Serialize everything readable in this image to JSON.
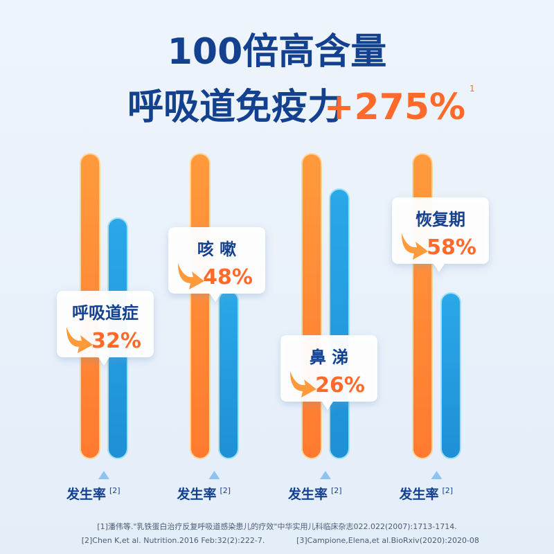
{
  "header": {
    "title_line1": "100倍高含量",
    "title_line2": "呼吸道免疫力",
    "highlight": "+275%",
    "footnote_mark": "1"
  },
  "groups": [
    {
      "label": "呼吸道症",
      "value": "32%",
      "axis_label": "发生率",
      "ref": "[2]"
    },
    {
      "label": "咳 嗽",
      "value": "48%",
      "axis_label": "发生率",
      "ref": "[2]"
    },
    {
      "label": "鼻 涕",
      "value": "26%",
      "axis_label": "发生率",
      "ref": "[2]"
    },
    {
      "label": "恢复期",
      "value": "58%",
      "axis_label": "发生率",
      "ref": "[2]"
    }
  ],
  "references": {
    "line1": "[1]潘伟等.\"乳铁蛋白治疗反复呼吸道感染患儿的疗效\"中华实用儿科临床杂志022.022(2007):1713-1714.",
    "line2_left": "[2]Chen K,et al. Nutrition.2016 Feb:32(2):222-7.",
    "line2_right": "[3]Campione,Elena,et al.BioRxiv(2020):2020-08"
  }
}
